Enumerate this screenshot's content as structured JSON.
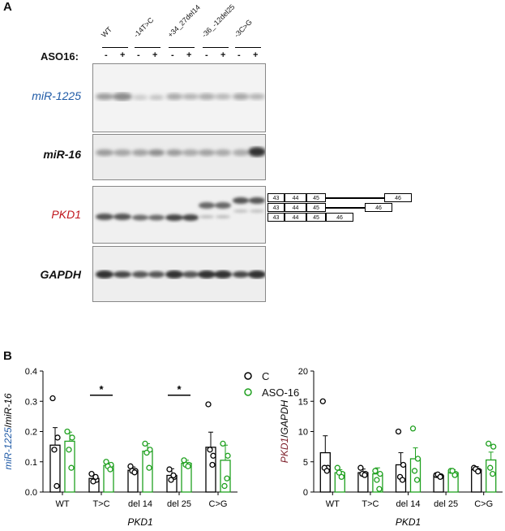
{
  "panel_a": {
    "letter": "A",
    "treatment_label": "ASO16:",
    "lane_groups": [
      "WT",
      "-14T>C",
      "+34_27del14",
      "-36_-12del25",
      "-3C>G"
    ],
    "minus": "-",
    "plus": "+",
    "blots": [
      {
        "label": "miR-1225",
        "color": "#1f5aa6"
      },
      {
        "label": "miR-16",
        "color": "#111111"
      },
      {
        "label": "PKD1",
        "color": "#c0161d"
      },
      {
        "label": "GAPDH",
        "color": "#111111"
      }
    ],
    "exon_diagrams": [
      {
        "exons": [
          "43",
          "44",
          "45",
          "46"
        ]
      },
      {
        "exons": [
          "43",
          "44",
          "45",
          "46"
        ]
      },
      {
        "exons": [
          "43",
          "44",
          "45",
          "46"
        ]
      }
    ]
  },
  "panel_b": {
    "letter": "B",
    "legend": [
      {
        "name": "C",
        "color": "#000000"
      },
      {
        "name": "ASO-16",
        "color": "#1fa01f"
      }
    ],
    "significance_mark": "*"
  },
  "chart_data": [
    {
      "type": "bar",
      "ylabel_part1": "miR-1225",
      "ylabel_sep": "/",
      "ylabel_part2": "miR-16",
      "xlabel": "PKD1",
      "categories": [
        "WT",
        "T>C",
        "del 14",
        "del 25",
        "C>G"
      ],
      "ylim": [
        0,
        0.4
      ],
      "yticks": [
        "0.0",
        "0.1",
        "0.2",
        "0.3",
        "0.4"
      ],
      "yticks_values": [
        0,
        0.1,
        0.2,
        0.3,
        0.4
      ],
      "series": [
        {
          "name": "C",
          "color": "#000000",
          "values": [
            0.155,
            0.045,
            0.072,
            0.055,
            0.148
          ],
          "errors": [
            0.058,
            0.012,
            0.011,
            0.022,
            0.05
          ],
          "points": [
            [
              0.31,
              0.18,
              0.14,
              0.02
            ],
            [
              0.06,
              0.04,
              0.035,
              0.05
            ],
            [
              0.085,
              0.07,
              0.07,
              0.065
            ],
            [
              0.075,
              0.05,
              0.04,
              0.055
            ],
            [
              0.29,
              0.12,
              0.14,
              0.09
            ]
          ]
        },
        {
          "name": "ASO-16",
          "color": "#1fa01f",
          "values": [
            0.168,
            0.088,
            0.135,
            0.095,
            0.105
          ],
          "errors": [
            0.03,
            0.008,
            0.025,
            0.01,
            0.05
          ],
          "points": [
            [
              0.2,
              0.18,
              0.14,
              0.08
            ],
            [
              0.1,
              0.09,
              0.085,
              0.075
            ],
            [
              0.16,
              0.14,
              0.13,
              0.08
            ],
            [
              0.105,
              0.09,
              0.09,
              0.085
            ],
            [
              0.16,
              0.12,
              0.02,
              0.045
            ]
          ]
        }
      ],
      "significance": [
        {
          "category_index": 1
        },
        {
          "category_index": 3
        }
      ]
    },
    {
      "type": "bar",
      "ylabel_part1": "PKD1",
      "ylabel_sep": "/",
      "ylabel_part2": "GAPDH",
      "xlabel": "PKD1",
      "categories": [
        "WT",
        "T>C",
        "del 14",
        "del 25",
        "C>G"
      ],
      "ylim": [
        0,
        20
      ],
      "yticks": [
        "0",
        "5",
        "10",
        "15",
        "20"
      ],
      "yticks_values": [
        0,
        5,
        10,
        15,
        20
      ],
      "series": [
        {
          "name": "C",
          "color": "#000000",
          "values": [
            6.5,
            3.2,
            4.5,
            2.7,
            3.7
          ],
          "errors": [
            2.8,
            0.6,
            2.0,
            0.2,
            0.5
          ],
          "points": [
            [
              15,
              4,
              4,
              3.5
            ],
            [
              4,
              3,
              3,
              2.8
            ],
            [
              10,
              4.5,
              2.5,
              2
            ],
            [
              2.8,
              2.6,
              2.9,
              2.5
            ],
            [
              4,
              3.5,
              3.8,
              3.4
            ]
          ]
        },
        {
          "name": "ASO-16",
          "color": "#1fa01f",
          "values": [
            3.2,
            3.0,
            5.5,
            3.2,
            5.3
          ],
          "errors": [
            0.5,
            1.0,
            1.8,
            0.5,
            1.3
          ],
          "points": [
            [
              4,
              3,
              3.2,
              2.5
            ],
            [
              3.5,
              3,
              2,
              0.5
            ],
            [
              10.5,
              5.5,
              3.5,
              2
            ],
            [
              3.5,
              3,
              3.5,
              2.8
            ],
            [
              8,
              7.5,
              4,
              3
            ]
          ]
        }
      ],
      "significance": []
    }
  ]
}
